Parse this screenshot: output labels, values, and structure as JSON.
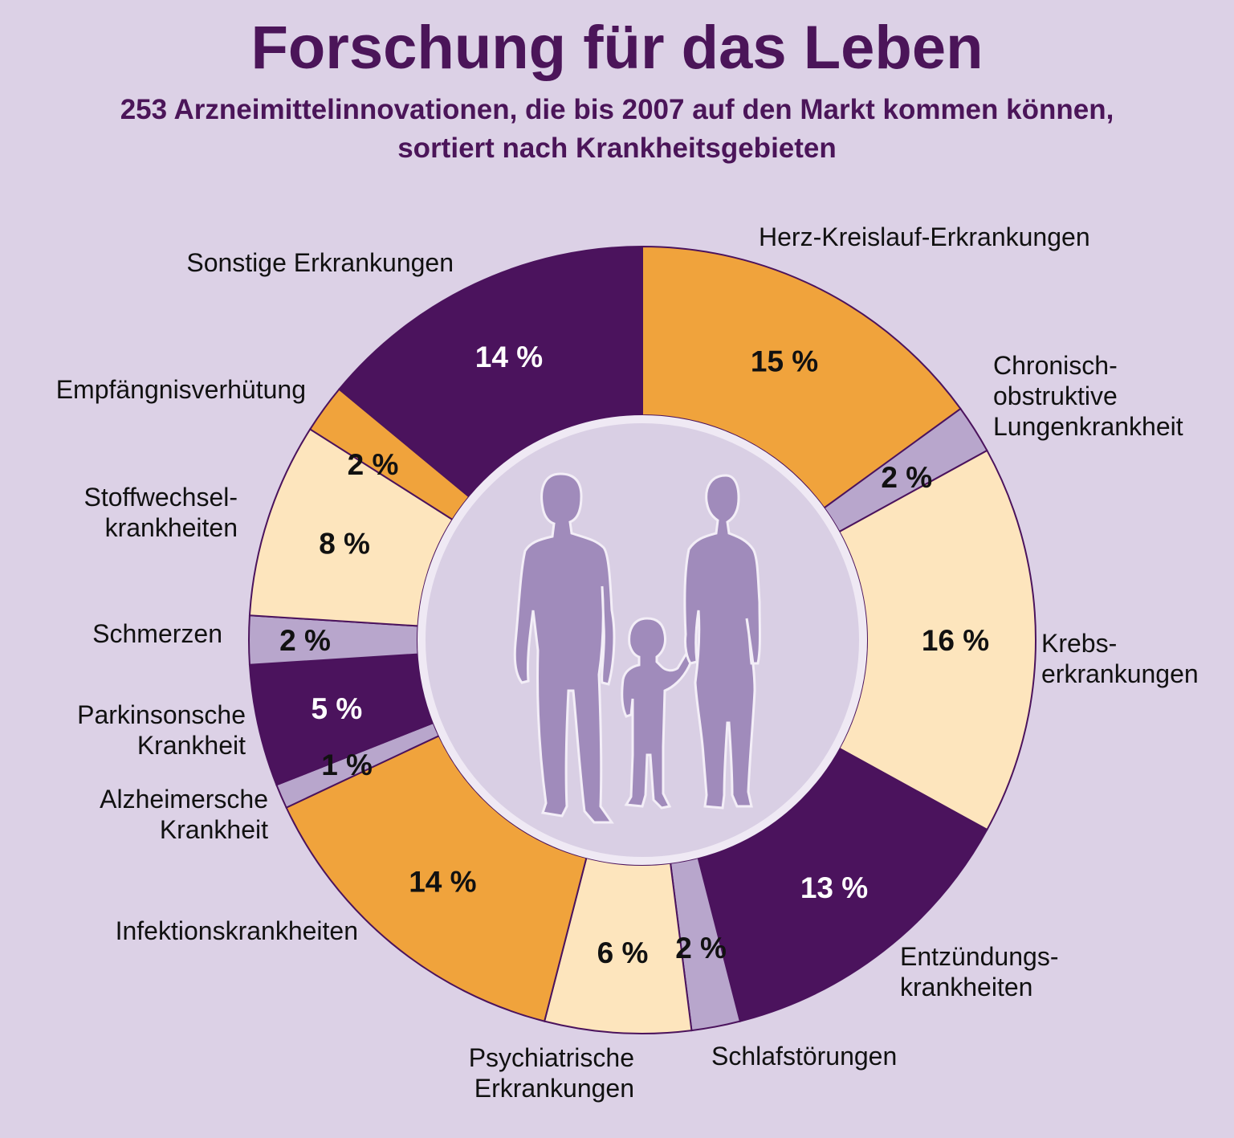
{
  "title": "Forschung für das Leben",
  "subtitle": [
    "253 Arzneimittelinnovationen, die bis 2007 auf den Markt kommen können,",
    "sortiert nach Krankheitsgebieten"
  ],
  "colors": {
    "background": "#dcd1e6",
    "title": "#4b1559",
    "orange": "#f0a33c",
    "cream": "#fde5bd",
    "dark_purple": "#4b135d",
    "light_purple": "#b8a6cc",
    "silhouette": "#a08bbb",
    "center": "#d9cfe4"
  },
  "icons": [
    "man-silhouette-icon",
    "child-silhouette-icon",
    "woman-silhouette-icon"
  ],
  "chart_data": {
    "type": "pie",
    "style": "donut",
    "unit": "%",
    "start": "12 o'clock",
    "direction": "clockwise",
    "slices": [
      {
        "label": "Herz-Kreislauf-Erkrankungen",
        "value": 15,
        "display": "15 %",
        "color": "#f0a33c",
        "text_color": "#111111"
      },
      {
        "label": "Chronisch-obstruktive Lungenkrankheit",
        "value": 2,
        "display": "2 %",
        "color": "#b8a6cc",
        "text_color": "#111111"
      },
      {
        "label": "Krebs-erkrankungen",
        "value": 16,
        "display": "16 %",
        "color": "#fde5bd",
        "text_color": "#111111"
      },
      {
        "label": "Entzündungs-krankheiten",
        "value": 13,
        "display": "13 %",
        "color": "#4b135d",
        "text_color": "#ffffff"
      },
      {
        "label": "Schlafstörungen",
        "value": 2,
        "display": "2 %",
        "color": "#b8a6cc",
        "text_color": "#111111"
      },
      {
        "label": "Psychiatrische Erkrankungen",
        "value": 6,
        "display": "6 %",
        "color": "#fde5bd",
        "text_color": "#111111"
      },
      {
        "label": "Infektionskrankheiten",
        "value": 14,
        "display": "14 %",
        "color": "#f0a33c",
        "text_color": "#111111"
      },
      {
        "label": "Alzheimersche Krankheit",
        "value": 1,
        "display": "1 %",
        "color": "#b8a6cc",
        "text_color": "#111111"
      },
      {
        "label": "Parkinsonsche Krankheit",
        "value": 5,
        "display": "5 %",
        "color": "#4b135d",
        "text_color": "#ffffff"
      },
      {
        "label": "Schmerzen",
        "value": 2,
        "display": "2 %",
        "color": "#b8a6cc",
        "text_color": "#111111"
      },
      {
        "label": "Stoffwechsel-krankheiten",
        "value": 8,
        "display": "8 %",
        "color": "#fde5bd",
        "text_color": "#111111"
      },
      {
        "label": "Empfängnisverhütung",
        "value": 2,
        "display": "2 %",
        "color": "#f0a33c",
        "text_color": "#111111"
      },
      {
        "label": "Sonstige Erkrankungen",
        "value": 14,
        "display": "14 %",
        "color": "#4b135d",
        "text_color": "#ffffff"
      }
    ]
  }
}
